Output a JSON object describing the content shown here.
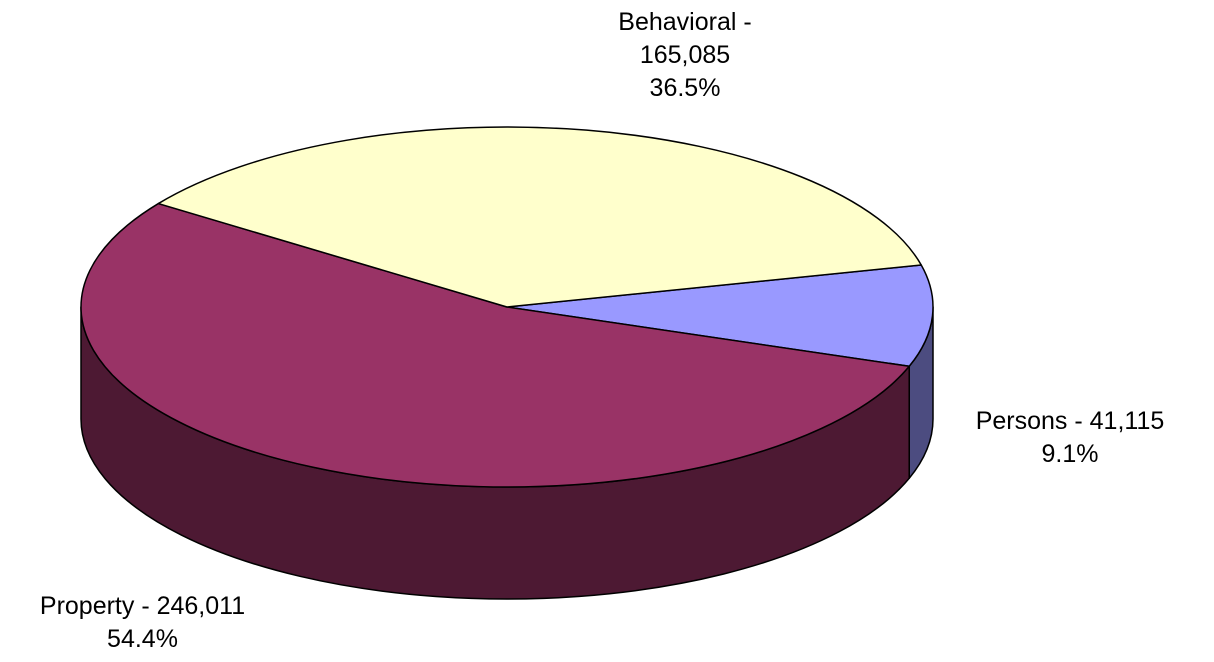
{
  "chart_data": {
    "type": "pie",
    "style": "3d",
    "slices": [
      {
        "name": "Behavioral",
        "value": 165085,
        "percent": 36.5,
        "color": "#ffffcc",
        "side_color": "#80805f",
        "label_lines": [
          "Behavioral -",
          "165,085",
          "36.5%"
        ]
      },
      {
        "name": "Persons",
        "value": 41115,
        "percent": 9.1,
        "color": "#9999ff",
        "side_color": "#4c4c80",
        "label_lines": [
          "Persons - 41,115",
          "9.1%"
        ]
      },
      {
        "name": "Property",
        "value": 246011,
        "percent": 54.4,
        "color": "#993366",
        "side_color": "#4d1933",
        "label_lines": [
          "Property - 246,011",
          "54.4%"
        ]
      }
    ]
  }
}
